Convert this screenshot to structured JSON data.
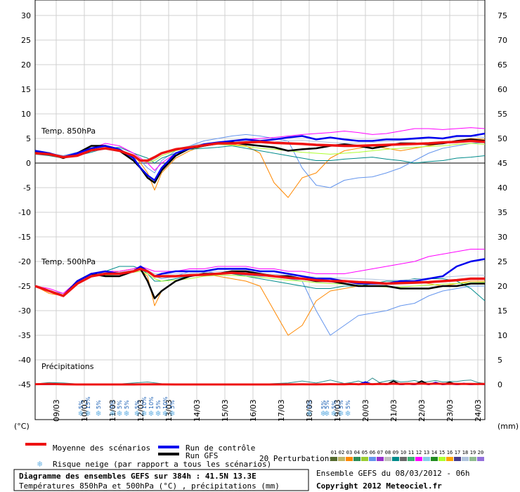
{
  "chart_data": {
    "type": "line",
    "title": "Diagramme des ensembles GEFS sur 384h : 41.5N 13.3E",
    "subtitle": "Températures 850hPa et 500hPa (°C) , précipitations (mm)",
    "left_axis_label": "(°C)",
    "right_axis_label": "(mm)",
    "left_ticks": [
      30,
      25,
      20,
      15,
      10,
      5,
      0,
      -5,
      -10,
      -15,
      -20,
      -25,
      -30,
      -35,
      -40,
      -45
    ],
    "right_ticks": [
      75,
      70,
      65,
      60,
      55,
      50,
      45,
      40,
      35,
      30,
      25,
      20,
      15,
      10,
      5,
      0
    ],
    "ylim": [
      -45,
      30
    ],
    "x_ticks": [
      "09/03",
      "10/03",
      "11/03",
      "12/03",
      "13/03",
      "14/03",
      "15/03",
      "16/03",
      "17/03",
      "18/03",
      "19/03",
      "20/03",
      "21/03",
      "22/03",
      "23/03",
      "24/03"
    ],
    "x_tick_hours": [
      18,
      42,
      66,
      90,
      114,
      138,
      162,
      186,
      210,
      234,
      258,
      282,
      306,
      330,
      354,
      378
    ],
    "xlim_hours": [
      0,
      384
    ],
    "panel_labels": {
      "t850": "Temp. 850hPa",
      "t500": "Temp. 500hPa",
      "precip": "Précipitations"
    },
    "t850": {
      "hours": [
        0,
        12,
        24,
        36,
        48,
        60,
        72,
        84,
        90,
        96,
        102,
        108,
        120,
        132,
        144,
        156,
        168,
        180,
        192,
        204,
        216,
        228,
        240,
        252,
        264,
        276,
        288,
        300,
        312,
        324,
        336,
        348,
        360,
        372,
        384
      ],
      "mean": [
        2,
        1.8,
        1.2,
        1.5,
        2.6,
        3,
        2.5,
        1.5,
        0.5,
        0.5,
        1.2,
        2,
        2.8,
        3.2,
        3.6,
        4,
        4,
        4.2,
        4.3,
        4.1,
        4,
        3.9,
        3.7,
        3.6,
        3.5,
        3.5,
        3.6,
        3.7,
        3.8,
        3.9,
        4,
        4.2,
        4.3,
        4.5,
        4.3
      ],
      "control": [
        2.5,
        2,
        1.2,
        2,
        3,
        3.5,
        2.8,
        1,
        -1,
        -2.5,
        -3.5,
        -1,
        2,
        3,
        3.8,
        4.2,
        4.5,
        4.8,
        4.5,
        4.8,
        5.2,
        5.5,
        4.8,
        5.2,
        4.8,
        4.5,
        4.5,
        4.8,
        4.8,
        5,
        5.2,
        5,
        5.5,
        5.5,
        6
      ],
      "gfs": [
        2.2,
        2,
        1,
        2,
        3.5,
        3.5,
        2.5,
        0.5,
        -1,
        -3,
        -4,
        -1.5,
        1.5,
        3,
        3.5,
        4,
        4.2,
        3.8,
        3.5,
        3.2,
        2.5,
        2.8,
        3,
        3.5,
        3.8,
        3.5,
        3,
        3.5,
        4,
        4,
        3.8,
        4,
        4.5,
        4.8,
        4.5
      ],
      "perturbations": [
        [
          2,
          1.5,
          1,
          1.8,
          2.5,
          3.2,
          2.8,
          1.5,
          0,
          -2,
          -5.5,
          -2,
          1,
          2.5,
          3.5,
          4,
          3.8,
          3.5,
          2,
          -4,
          -7,
          -3,
          -2,
          1,
          2.5,
          3,
          3.5,
          3,
          2.5,
          3,
          3.5,
          4,
          4.5,
          5,
          4.8
        ],
        [
          2,
          2,
          1.5,
          2.2,
          3,
          3.5,
          2.5,
          1,
          0.5,
          -1,
          -2,
          0.5,
          2.5,
          3.5,
          4.5,
          5,
          5.5,
          5.8,
          5.5,
          5,
          4.5,
          -1,
          -4.5,
          -5,
          -3.5,
          -3,
          -2.8,
          -2,
          -1,
          0.5,
          2,
          3,
          3.5,
          4,
          4.2
        ],
        [
          1.8,
          1.5,
          1,
          1.5,
          2.2,
          3,
          3.2,
          2,
          1.5,
          1,
          0,
          1,
          2,
          2.8,
          3,
          3.2,
          3.5,
          3,
          2.5,
          2,
          1.5,
          1,
          0.5,
          0.5,
          0.8,
          1,
          1.2,
          0.8,
          0.5,
          0,
          0.3,
          0.5,
          1,
          1.2,
          1.5
        ],
        [
          2.2,
          2,
          1.2,
          1.8,
          3,
          4,
          3.5,
          2,
          1,
          0,
          -1.5,
          0,
          2,
          3,
          3.8,
          4.2,
          4.5,
          4.8,
          5,
          5.2,
          5.5,
          5.8,
          6,
          6.2,
          6.5,
          6.2,
          5.8,
          6,
          6.5,
          7,
          7,
          6.8,
          7,
          7.2,
          7
        ],
        [
          2,
          1.8,
          1.1,
          1.6,
          2.6,
          3,
          2.6,
          1.4,
          0.6,
          0.2,
          0.5,
          1.5,
          2.5,
          3.2,
          3.5,
          3.8,
          3.6,
          3.4,
          3,
          2.8,
          2.5,
          2.2,
          2,
          1.8,
          2,
          2.2,
          2.5,
          2.8,
          3,
          3.2,
          3.4,
          3.5,
          3.8,
          4,
          3.8
        ],
        [
          1.9,
          1.7,
          1.2,
          1.4,
          2.4,
          2.8,
          2.4,
          1.3,
          0.7,
          0.3,
          0.8,
          1.8,
          2.8,
          3.5,
          4,
          4.3,
          4.4,
          4.5,
          4.4,
          4.3,
          4.5,
          4.6,
          4.4,
          4.2,
          4,
          4.1,
          4.2,
          4.4,
          4.6,
          4.8,
          5,
          5.1,
          5.3,
          5.5,
          5.2
        ]
      ]
    },
    "t500": {
      "hours": [
        0,
        12,
        24,
        36,
        48,
        60,
        72,
        84,
        90,
        96,
        102,
        108,
        120,
        132,
        144,
        156,
        168,
        180,
        192,
        204,
        216,
        228,
        240,
        252,
        264,
        276,
        288,
        300,
        312,
        324,
        336,
        348,
        360,
        372,
        384
      ],
      "mean": [
        -25,
        -26,
        -27,
        -24.5,
        -23,
        -22.5,
        -22.5,
        -22,
        -21.5,
        -22,
        -23,
        -23,
        -23,
        -22.8,
        -22.7,
        -22.5,
        -22.3,
        -22.5,
        -22.7,
        -23,
        -23.3,
        -23.5,
        -23.8,
        -24,
        -24,
        -24.2,
        -24.3,
        -24.5,
        -24.4,
        -24.3,
        -24.2,
        -24,
        -23.8,
        -23.5,
        -23.5
      ],
      "control": [
        -25,
        -26,
        -27,
        -24,
        -22.5,
        -22,
        -22.5,
        -22,
        -21,
        -22,
        -23,
        -22.5,
        -22,
        -22,
        -22,
        -21.5,
        -21.5,
        -21.5,
        -22,
        -22,
        -22.5,
        -23,
        -23.5,
        -23.5,
        -24,
        -24.5,
        -24.5,
        -24.5,
        -24,
        -24,
        -23.5,
        -23,
        -21,
        -20,
        -19.5
      ],
      "gfs": [
        -25,
        -26,
        -27,
        -24,
        -22.5,
        -23,
        -23,
        -22,
        -21.5,
        -24,
        -27.5,
        -26,
        -24,
        -23,
        -22.5,
        -22.5,
        -22,
        -22,
        -22.5,
        -23,
        -23,
        -23.5,
        -24,
        -24,
        -24.5,
        -25,
        -25,
        -25,
        -25.5,
        -25.5,
        -25.5,
        -25,
        -25,
        -24.5,
        -24.5
      ],
      "perturbations": [
        [
          -25,
          -26.5,
          -27,
          -24.5,
          -23,
          -22.5,
          -22,
          -21.5,
          -21.8,
          -23,
          -29,
          -26,
          -24,
          -23,
          -22.5,
          -23,
          -23.5,
          -24,
          -25,
          -30,
          -35,
          -33,
          -28,
          -26,
          -25.5,
          -25,
          -24.5,
          -24.5,
          -24.5,
          -24,
          -24.5,
          -25,
          -24.5,
          -24,
          -24
        ],
        [
          -25,
          -26,
          -26.5,
          -24,
          -23,
          -22.5,
          -22.5,
          -22,
          -21.5,
          -22,
          -23,
          -23.5,
          -23,
          -22,
          -22,
          -22.5,
          -22.5,
          -22.8,
          -23,
          -23,
          -23.5,
          -24,
          -30,
          -35,
          -33,
          -31,
          -30.5,
          -30,
          -29,
          -28.5,
          -27,
          -26,
          -25.5,
          -25,
          -25
        ],
        [
          -25,
          -26,
          -27,
          -24.5,
          -23,
          -22,
          -21,
          -21,
          -21.5,
          -22.5,
          -24,
          -24,
          -23.5,
          -23,
          -22.5,
          -22.5,
          -22.5,
          -23,
          -23.5,
          -24,
          -24.5,
          -25,
          -25.5,
          -25.5,
          -25,
          -25,
          -24.5,
          -24,
          -24,
          -23.5,
          -23.5,
          -23.5,
          -24,
          -25.5,
          -28
        ],
        [
          -25,
          -25.5,
          -26.5,
          -24,
          -22.5,
          -22,
          -22,
          -21.5,
          -21,
          -21.5,
          -22,
          -22,
          -22,
          -21.5,
          -21.5,
          -21,
          -21,
          -21,
          -21.5,
          -21.5,
          -22,
          -22,
          -22.5,
          -22.5,
          -22.5,
          -22,
          -21.5,
          -21,
          -20.5,
          -20,
          -19,
          -18.5,
          -18,
          -17.5,
          -17.5
        ],
        [
          -25,
          -26,
          -27,
          -24.5,
          -23,
          -22.8,
          -22.6,
          -22.2,
          -22,
          -22.5,
          -23.5,
          -24,
          -23.8,
          -23.5,
          -23,
          -22.8,
          -22.8,
          -23,
          -23.2,
          -23.5,
          -23.8,
          -24,
          -24.3,
          -24.5,
          -24.6,
          -24.8,
          -25,
          -25.2,
          -25.2,
          -25,
          -24.8,
          -24.6,
          -24.5,
          -24.3,
          -24.2
        ],
        [
          -24.8,
          -25.8,
          -26.8,
          -24.2,
          -22.8,
          -22.3,
          -22.2,
          -21.8,
          -21.4,
          -21.8,
          -22.5,
          -22.6,
          -22.5,
          -22.4,
          -22.2,
          -22,
          -22,
          -22.2,
          -22.5,
          -22.6,
          -22.8,
          -23,
          -23.2,
          -23.3,
          -23.4,
          -23.5,
          -23.6,
          -23.8,
          -23.8,
          -23.6,
          -23.4,
          -23.2,
          -23,
          -22.8,
          -22.8
        ]
      ]
    },
    "precip": {
      "hours": [
        0,
        12,
        24,
        36,
        48,
        60,
        72,
        84,
        96,
        108,
        120,
        144,
        168,
        192,
        216,
        228,
        240,
        252,
        264,
        270,
        276,
        282,
        288,
        294,
        300,
        306,
        312,
        318,
        324,
        330,
        336,
        342,
        348,
        354,
        360,
        366,
        372,
        378,
        384
      ],
      "mean_mm": [
        0.3,
        0.5,
        0.2,
        0,
        0,
        0,
        0,
        0,
        0.2,
        0.1,
        0,
        0,
        0,
        0,
        0.1,
        0.2,
        0.1,
        0.3,
        0.2,
        0.4,
        0.2,
        0.5,
        0.3,
        0.6,
        0.4,
        0.8,
        0.4,
        0.7,
        0.5,
        0.9,
        0.5,
        0.8,
        0.6,
        0.7,
        0.5,
        0.6,
        0.5,
        0.4,
        0.5
      ],
      "control_mm": [
        0,
        0.2,
        0.1,
        0,
        0,
        0,
        0,
        0,
        0,
        0,
        0,
        0,
        0,
        0,
        0,
        0,
        0,
        0.5,
        0,
        0.3,
        0,
        2.5,
        0,
        0.8,
        0,
        1.2,
        0,
        0.5,
        0,
        1,
        0,
        2,
        0,
        0.6,
        0,
        1,
        0,
        0.4,
        0.2
      ],
      "gfs_mm": [
        0,
        0.1,
        0,
        0,
        0,
        0,
        0,
        0,
        0,
        0,
        0,
        0,
        0,
        0,
        0,
        0,
        0,
        0.2,
        0,
        0.4,
        0,
        0.5,
        0,
        1.2,
        0,
        3.5,
        0,
        0.6,
        0,
        3.5,
        0,
        1.5,
        0,
        2.2,
        0,
        0.5,
        0,
        0.8,
        0
      ],
      "max_mm": [
        0.6,
        2,
        1.5,
        0.5,
        0,
        0.3,
        0.5,
        1.5,
        2.5,
        0.8,
        0.4,
        0.2,
        0.1,
        0.3,
        1.5,
        3.5,
        1.5,
        4.5,
        1,
        2,
        3.5,
        1.5,
        6.5,
        2,
        3.5,
        4.5,
        2.5,
        3,
        4,
        2,
        3,
        4,
        2.5,
        3,
        3,
        4,
        4.5,
        2,
        1
      ]
    },
    "snow_risk": [
      {
        "hour": 42,
        "labels": [
          "5%",
          "15%"
        ]
      },
      {
        "hour": 54,
        "labels": [
          "5%"
        ]
      },
      {
        "hour": 72,
        "labels": [
          "5%",
          "5%",
          "5%"
        ]
      },
      {
        "hour": 102,
        "labels": [
          "5%",
          "10%",
          "10%",
          "5%",
          "10%",
          "5%"
        ]
      },
      {
        "hour": 234,
        "labels": [
          "5%"
        ]
      },
      {
        "hour": 246,
        "labels": [
          "5%"
        ]
      },
      {
        "hour": 258,
        "labels": [
          "5%",
          "5%",
          "5%",
          "5%"
        ]
      }
    ],
    "colors": {
      "mean": "#ee1111",
      "control": "#0000ee",
      "gfs": "#000000",
      "perturbations": [
        "#556b2f",
        "#bdb76b",
        "#ff8800",
        "#2e8b57",
        "#9acd32",
        "#6495ed",
        "#9932cc",
        "#c0c0c0",
        "#008b8b",
        "#696969",
        "#3cb371",
        "#ff00ff",
        "#87ceeb",
        "#228b22",
        "#adff2f",
        "#ffa500",
        "#483d8b",
        "#b0c4de",
        "#8fbc8f",
        "#9370db"
      ],
      "snow": "#6cb4e4"
    }
  },
  "legend": {
    "mean": "Moyenne des scénarios",
    "control": "Run de contrôle",
    "gfs": "Run GFS",
    "snow": "Risque neige (par rapport a tous les scénarios)",
    "perturbations": "20 Perturbations",
    "perturbation_ids": [
      "01",
      "02",
      "03",
      "04",
      "05",
      "06",
      "07",
      "08",
      "09",
      "10",
      "11",
      "12",
      "13",
      "14",
      "15",
      "16",
      "17",
      "18",
      "19",
      "20"
    ]
  },
  "footer": {
    "title": "Diagramme des ensembles GEFS sur 384h : 41.5N 13.3E",
    "subtitle": "Températures 850hPa et 500hPa (°C) , précipitations (mm)",
    "run_info": "Ensemble GEFS du 08/03/2012 - 06h",
    "copyright": "Copyright 2012 Meteociel.fr"
  }
}
